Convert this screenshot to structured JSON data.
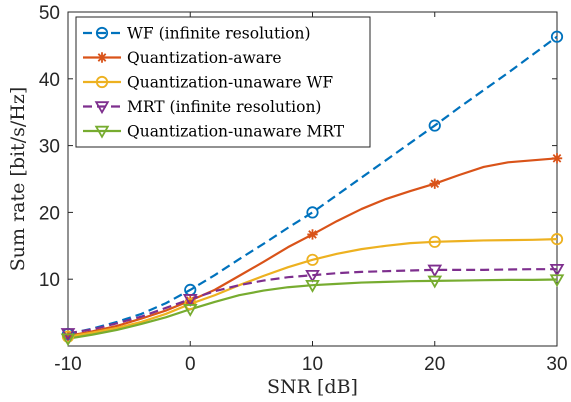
{
  "chart_data": {
    "type": "line",
    "xlabel": "SNR [dB]",
    "ylabel": "Sum rate [bit/s/Hz]",
    "xlim": [
      -10,
      30
    ],
    "ylim": [
      0,
      50
    ],
    "x_ticks": [
      -10,
      0,
      10,
      20,
      30
    ],
    "y_ticks": [
      10,
      20,
      30,
      40,
      50
    ],
    "grid": false,
    "legend_position": "top-left",
    "series": [
      {
        "name": "WF (infinite resolution)",
        "color": "#0072BD",
        "line_style": "dashed",
        "marker": "circle",
        "x": [
          -10,
          -8,
          -6,
          -4,
          -2,
          0,
          2,
          4,
          6,
          8,
          10,
          12,
          14,
          16,
          18,
          20,
          22,
          24,
          26,
          28,
          30
        ],
        "y": [
          1.8,
          2.6,
          3.6,
          4.8,
          6.4,
          8.4,
          10.6,
          13.0,
          15.3,
          17.7,
          20.0,
          22.6,
          25.2,
          27.8,
          30.4,
          33.0,
          35.7,
          38.3,
          40.9,
          43.6,
          46.3
        ],
        "marker_x": [
          -10,
          0,
          10,
          20,
          30
        ],
        "marker_y": [
          1.8,
          8.4,
          20.0,
          33.0,
          46.3
        ]
      },
      {
        "name": "Quantization-aware",
        "color": "#D95319",
        "line_style": "solid",
        "marker": "asterisk",
        "x": [
          -10,
          -8,
          -6,
          -4,
          -2,
          0,
          2,
          4,
          6,
          8,
          10,
          12,
          14,
          16,
          18,
          20,
          22,
          24,
          26,
          28,
          30
        ],
        "y": [
          1.5,
          2.2,
          3.0,
          4.1,
          5.3,
          6.8,
          8.4,
          10.5,
          12.6,
          14.8,
          16.7,
          18.7,
          20.5,
          22.0,
          23.2,
          24.3,
          25.6,
          26.8,
          27.5,
          27.8,
          28.1
        ],
        "marker_x": [
          -10,
          0,
          10,
          20,
          30
        ],
        "marker_y": [
          1.5,
          6.8,
          16.7,
          24.3,
          28.1
        ]
      },
      {
        "name": "Quantization-unaware WF",
        "color": "#EDB120",
        "line_style": "solid",
        "marker": "circle",
        "x": [
          -10,
          -8,
          -6,
          -4,
          -2,
          0,
          2,
          4,
          6,
          8,
          10,
          12,
          14,
          16,
          18,
          20,
          22,
          24,
          26,
          28,
          30
        ],
        "y": [
          1.4,
          2.0,
          2.7,
          3.6,
          4.8,
          6.3,
          7.6,
          9.1,
          10.5,
          11.8,
          12.9,
          13.8,
          14.5,
          15.0,
          15.4,
          15.6,
          15.7,
          15.8,
          15.85,
          15.9,
          16.0
        ],
        "marker_x": [
          -10,
          0,
          10,
          20,
          30
        ],
        "marker_y": [
          1.4,
          6.3,
          12.9,
          15.6,
          16.0
        ]
      },
      {
        "name": "MRT (infinite resolution)",
        "color": "#7E2F8E",
        "line_style": "dashed",
        "marker": "triangle-down",
        "x": [
          -10,
          -8,
          -6,
          -4,
          -2,
          0,
          2,
          4,
          6,
          8,
          10,
          12,
          14,
          16,
          18,
          20,
          22,
          24,
          26,
          28,
          30
        ],
        "y": [
          1.9,
          2.5,
          3.4,
          4.4,
          5.7,
          7.0,
          8.2,
          9.1,
          9.8,
          10.3,
          10.6,
          10.9,
          11.1,
          11.2,
          11.3,
          11.4,
          11.4,
          11.4,
          11.45,
          11.5,
          11.5
        ],
        "marker_x": [
          -10,
          0,
          10,
          20,
          30
        ],
        "marker_y": [
          1.9,
          7.0,
          10.6,
          11.4,
          11.5
        ]
      },
      {
        "name": "Quantization-unaware MRT",
        "color": "#77AC30",
        "line_style": "solid",
        "marker": "triangle-down",
        "x": [
          -10,
          -8,
          -6,
          -4,
          -2,
          0,
          2,
          4,
          6,
          8,
          10,
          12,
          14,
          16,
          18,
          20,
          22,
          24,
          26,
          28,
          30
        ],
        "y": [
          1.1,
          1.7,
          2.4,
          3.3,
          4.3,
          5.5,
          6.6,
          7.6,
          8.3,
          8.8,
          9.1,
          9.3,
          9.5,
          9.6,
          9.7,
          9.75,
          9.8,
          9.85,
          9.9,
          9.9,
          9.95
        ],
        "marker_x": [
          -10,
          0,
          10,
          20,
          30
        ],
        "marker_y": [
          1.1,
          5.5,
          9.1,
          9.75,
          9.95
        ]
      }
    ]
  }
}
